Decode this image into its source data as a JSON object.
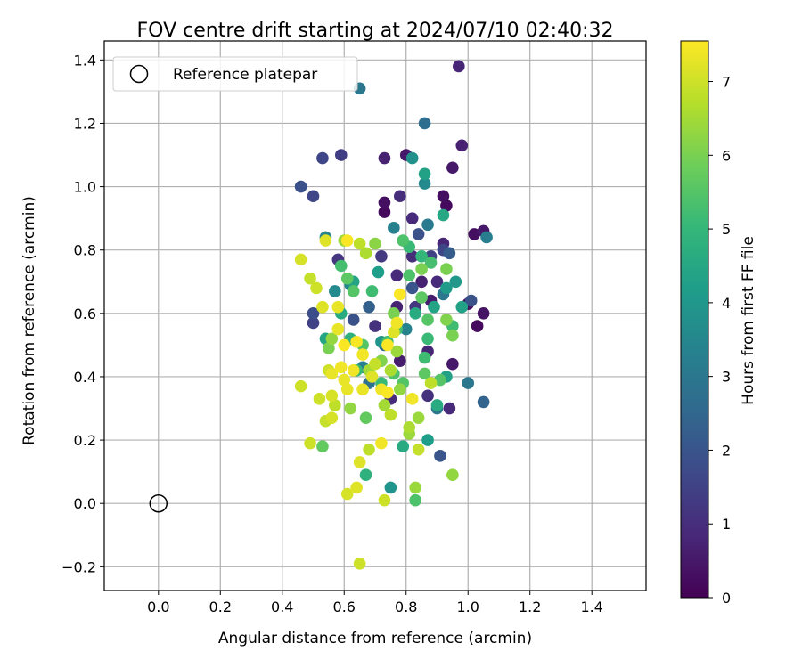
{
  "chart_data": {
    "type": "scatter",
    "title": "FOV centre drift starting at 2024/07/10 02:40:32",
    "xlabel": "Angular distance from reference (arcmin)",
    "ylabel": "Rotation from reference (arcmin)",
    "xlim": [
      -0.175,
      1.575
    ],
    "ylim": [
      -0.275,
      1.46
    ],
    "xticks": [
      0.0,
      0.2,
      0.4,
      0.6,
      0.8,
      1.0,
      1.2,
      1.4
    ],
    "xtick_labels": [
      "0.0",
      "0.2",
      "0.4",
      "0.6",
      "0.8",
      "1.0",
      "1.2",
      "1.4"
    ],
    "yticks": [
      -0.2,
      0.0,
      0.2,
      0.4,
      0.6,
      0.8,
      1.0,
      1.2,
      1.4
    ],
    "ytick_labels": [
      "−0.2",
      "0.0",
      "0.2",
      "0.4",
      "0.6",
      "0.8",
      "1.0",
      "1.2",
      "1.4"
    ],
    "grid": true,
    "legend": {
      "placement": "upper-left",
      "entries": [
        "Reference platepar"
      ]
    },
    "reference_point": {
      "x": 0.0,
      "y": 0.0
    },
    "colorbar": {
      "label": "Hours from first FF file",
      "colormap": "viridis",
      "range": [
        0,
        7.55
      ],
      "ticks": [
        0,
        1,
        2,
        3,
        4,
        5,
        6,
        7
      ],
      "tick_labels": [
        "0",
        "1",
        "2",
        "3",
        "4",
        "5",
        "6",
        "7"
      ],
      "colormap_stops": [
        "#440154",
        "#482878",
        "#3e4989",
        "#31688e",
        "#26828e",
        "#1f9e89",
        "#35b779",
        "#6ece58",
        "#b5de2b",
        "#fde725"
      ]
    },
    "series": [
      {
        "points": [
          [
            0.97,
            1.38,
            0.8
          ],
          [
            0.98,
            1.13,
            0.7
          ],
          [
            0.8,
            1.1,
            0.5
          ],
          [
            0.73,
            1.09,
            0.7
          ],
          [
            0.95,
            1.06,
            0.5
          ],
          [
            0.92,
            0.97,
            0.3
          ],
          [
            0.93,
            0.94,
            0.2
          ],
          [
            0.73,
            0.95,
            0.3
          ],
          [
            0.73,
            0.92,
            0.2
          ],
          [
            0.82,
            0.9,
            0.9
          ],
          [
            0.92,
            0.82,
            0.8
          ],
          [
            1.05,
            0.86,
            0.5
          ],
          [
            1.02,
            0.85,
            0.3
          ],
          [
            0.78,
            0.97,
            1.0
          ],
          [
            0.85,
            0.7,
            0.7
          ],
          [
            1.0,
            0.63,
            0.3
          ],
          [
            1.05,
            0.6,
            0.4
          ],
          [
            1.03,
            0.56,
            0.2
          ],
          [
            0.95,
            0.44,
            0.5
          ],
          [
            0.94,
            0.3,
            0.9
          ],
          [
            0.88,
            0.78,
            1.5
          ],
          [
            0.9,
            0.7,
            0.9
          ],
          [
            0.77,
            0.72,
            0.9
          ],
          [
            0.83,
            0.62,
            1.2
          ],
          [
            0.7,
            0.56,
            1.1
          ],
          [
            0.87,
            0.48,
            0.8
          ],
          [
            0.78,
            0.45,
            0.6
          ],
          [
            0.87,
            0.34,
            1.1
          ],
          [
            0.75,
            0.33,
            0.9
          ],
          [
            0.88,
            0.64,
            0.6
          ],
          [
            0.77,
            0.62,
            0.7
          ],
          [
            0.53,
            1.09,
            1.6
          ],
          [
            0.59,
            1.1,
            1.4
          ],
          [
            0.46,
            1.0,
            1.9
          ],
          [
            0.5,
            0.97,
            1.6
          ],
          [
            0.58,
            0.77,
            1.2
          ],
          [
            0.5,
            0.6,
            1.8
          ],
          [
            0.5,
            0.57,
            1.5
          ],
          [
            0.72,
            0.78,
            1.3
          ],
          [
            0.82,
            0.78,
            1.0
          ],
          [
            0.84,
            0.85,
            1.9
          ],
          [
            0.92,
            0.8,
            1.6
          ],
          [
            0.94,
            0.79,
            2.2
          ],
          [
            0.86,
            1.2,
            2.7
          ],
          [
            0.91,
            0.15,
            2.0
          ],
          [
            1.01,
            0.64,
            1.9
          ],
          [
            1.05,
            0.32,
            2.4
          ],
          [
            0.68,
            0.62,
            2.3
          ],
          [
            0.82,
            0.68,
            2.0
          ],
          [
            0.63,
            0.58,
            1.9
          ],
          [
            0.73,
            0.5,
            2.6
          ],
          [
            0.65,
            1.31,
            3.0
          ],
          [
            1.06,
            0.84,
            3.2
          ],
          [
            0.87,
            0.88,
            3.1
          ],
          [
            1.0,
            0.38,
            3.0
          ],
          [
            0.82,
            1.09,
            3.8
          ],
          [
            0.86,
            1.01,
            3.6
          ],
          [
            0.76,
            0.87,
            3.3
          ],
          [
            0.92,
            0.66,
            3.0
          ],
          [
            0.62,
            0.69,
            3.5
          ],
          [
            0.54,
            0.84,
            3.4
          ],
          [
            0.57,
            0.67,
            3.6
          ],
          [
            0.8,
            0.55,
            3.4
          ],
          [
            0.66,
            0.43,
            3.3
          ],
          [
            0.68,
            0.38,
            2.8
          ],
          [
            0.9,
            0.3,
            3.0
          ],
          [
            0.72,
            0.51,
            3.9
          ],
          [
            0.86,
            1.04,
            4.3
          ],
          [
            0.92,
            0.91,
            4.5
          ],
          [
            0.96,
            0.7,
            4.0
          ],
          [
            0.93,
            0.68,
            4.1
          ],
          [
            0.98,
            0.62,
            4.3
          ],
          [
            0.89,
            0.62,
            4.4
          ],
          [
            0.83,
            0.6,
            4.6
          ],
          [
            0.59,
            0.6,
            4.6
          ],
          [
            0.63,
            0.7,
            4.4
          ],
          [
            0.71,
            0.73,
            4.2
          ],
          [
            0.87,
            0.2,
            4.2
          ],
          [
            0.75,
            0.05,
            3.9
          ],
          [
            0.79,
            0.18,
            4.6
          ],
          [
            0.93,
            0.4,
            4.3
          ],
          [
            0.9,
            0.31,
            4.6
          ],
          [
            0.54,
            0.52,
            4.4
          ],
          [
            0.62,
            0.52,
            4.8
          ],
          [
            0.67,
            0.09,
            4.8
          ],
          [
            0.95,
            0.56,
            5.2
          ],
          [
            0.85,
            0.78,
            5.0
          ],
          [
            0.88,
            0.76,
            5.3
          ],
          [
            0.81,
            0.81,
            5.1
          ],
          [
            0.79,
            0.83,
            5.4
          ],
          [
            0.59,
            0.75,
            5.3
          ],
          [
            0.61,
            0.71,
            5.6
          ],
          [
            0.63,
            0.67,
            5.5
          ],
          [
            0.69,
            0.67,
            5.2
          ],
          [
            0.81,
            0.72,
            5.4
          ],
          [
            0.85,
            0.65,
            5.6
          ],
          [
            0.87,
            0.58,
            5.5
          ],
          [
            0.77,
            0.55,
            5.3
          ],
          [
            0.74,
            0.51,
            5.2
          ],
          [
            0.66,
            0.5,
            5.5
          ],
          [
            0.64,
            0.42,
            5.1
          ],
          [
            0.76,
            0.41,
            5.4
          ],
          [
            0.86,
            0.41,
            5.6
          ],
          [
            0.86,
            0.46,
            5.2
          ],
          [
            0.87,
            0.52,
            5.1
          ],
          [
            0.91,
            0.39,
            5.5
          ],
          [
            0.83,
            0.01,
            5.4
          ],
          [
            0.67,
            0.27,
            5.7
          ],
          [
            0.53,
            0.18,
            5.7
          ],
          [
            0.72,
            0.38,
            5.1
          ],
          [
            0.79,
            0.38,
            5.5
          ],
          [
            0.95,
            0.53,
            6.0
          ],
          [
            0.93,
            0.58,
            6.1
          ],
          [
            0.85,
            0.74,
            6.0
          ],
          [
            0.93,
            0.74,
            6.0
          ],
          [
            0.7,
            0.82,
            6.2
          ],
          [
            0.76,
            0.6,
            6.0
          ],
          [
            0.72,
            0.45,
            6.1
          ],
          [
            0.77,
            0.48,
            6.4
          ],
          [
            0.78,
            0.36,
            6.3
          ],
          [
            0.84,
            0.27,
            6.4
          ],
          [
            0.81,
            0.24,
            6.6
          ],
          [
            0.81,
            0.22,
            6.4
          ],
          [
            0.95,
            0.09,
            6.3
          ],
          [
            0.83,
            0.05,
            6.4
          ],
          [
            0.55,
            0.49,
            6.0
          ],
          [
            0.56,
            0.52,
            6.3
          ],
          [
            0.68,
            0.42,
            6.5
          ],
          [
            0.73,
            0.31,
            6.5
          ],
          [
            0.62,
            0.3,
            6.3
          ],
          [
            0.67,
            0.79,
            6.6
          ],
          [
            0.65,
            0.82,
            6.8
          ],
          [
            0.6,
            0.83,
            6.4
          ],
          [
            0.68,
            0.17,
            6.8
          ],
          [
            0.75,
            0.28,
            6.8
          ],
          [
            0.88,
            0.38,
            6.8
          ],
          [
            0.84,
            0.17,
            6.9
          ],
          [
            0.75,
            0.42,
            6.6
          ],
          [
            0.7,
            0.44,
            6.9
          ],
          [
            0.55,
            0.42,
            7.0
          ],
          [
            0.46,
            0.37,
            7.0
          ],
          [
            0.46,
            0.77,
            7.1
          ],
          [
            0.49,
            0.71,
            6.9
          ],
          [
            0.51,
            0.68,
            7.0
          ],
          [
            0.53,
            0.62,
            7.2
          ],
          [
            0.58,
            0.62,
            7.3
          ],
          [
            0.56,
            0.34,
            7.1
          ],
          [
            0.57,
            0.31,
            6.8
          ],
          [
            0.54,
            0.26,
            6.9
          ],
          [
            0.56,
            0.27,
            7.1
          ],
          [
            0.49,
            0.19,
            7.0
          ],
          [
            0.52,
            0.33,
            7.0
          ],
          [
            0.61,
            0.03,
            7.1
          ],
          [
            0.73,
            0.01,
            7.0
          ],
          [
            0.64,
            0.05,
            7.2
          ],
          [
            0.65,
            -0.19,
            7.0
          ],
          [
            0.65,
            0.13,
            7.2
          ],
          [
            0.6,
            0.39,
            7.3
          ],
          [
            0.63,
            0.42,
            7.4
          ],
          [
            0.66,
            0.47,
            7.4
          ],
          [
            0.69,
            0.4,
            7.2
          ],
          [
            0.72,
            0.36,
            7.4
          ],
          [
            0.74,
            0.5,
            7.5
          ],
          [
            0.76,
            0.54,
            7.2
          ],
          [
            0.78,
            0.66,
            7.5
          ],
          [
            0.6,
            0.5,
            7.5
          ],
          [
            0.58,
            0.55,
            7.3
          ],
          [
            0.61,
            0.83,
            7.5
          ],
          [
            0.54,
            0.83,
            7.2
          ],
          [
            0.72,
            0.19,
            7.4
          ],
          [
            0.74,
            0.35,
            7.5
          ],
          [
            0.77,
            0.57,
            7.4
          ],
          [
            0.82,
            0.33,
            7.4
          ],
          [
            0.56,
            0.41,
            7.3
          ],
          [
            0.59,
            0.43,
            7.4
          ],
          [
            0.64,
            0.51,
            7.5
          ],
          [
            0.66,
            0.36,
            7.3
          ],
          [
            0.61,
            0.36,
            7.3
          ]
        ]
      }
    ]
  }
}
